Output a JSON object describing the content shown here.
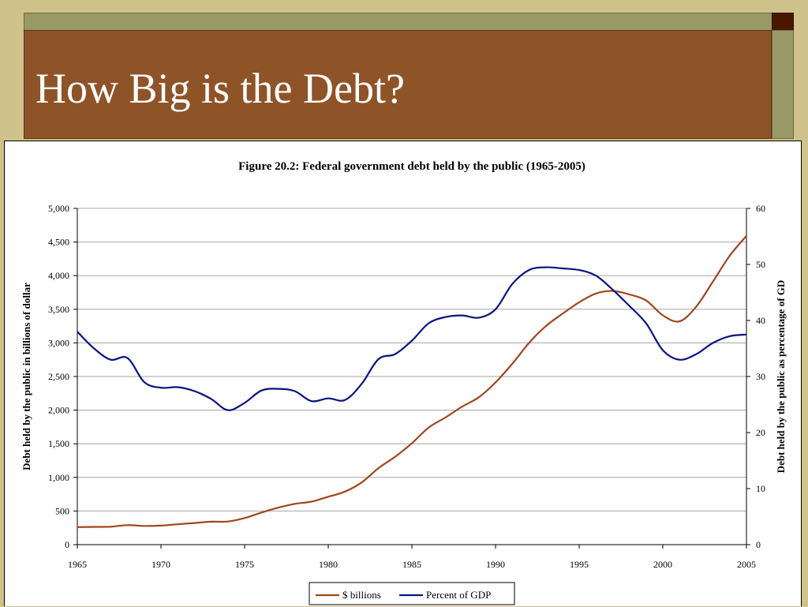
{
  "slide": {
    "title": "How Big is the Debt?"
  },
  "colors": {
    "background": "#cfc28a",
    "title_band": "#8f5328",
    "olive_bar": "#999966",
    "dark_square": "#4a1800"
  },
  "chart_data": {
    "type": "line",
    "title": "Figure 20.2: Federal government debt held by the public (1965-2005)",
    "xlabel": "",
    "ylabel": "Debt held by the public in billions of dollar",
    "y2label": "Debt held by the public as percentage of GD",
    "xlim": [
      1965,
      2005
    ],
    "ylim": [
      0,
      5000
    ],
    "y2lim": [
      0,
      60
    ],
    "x_ticks": [
      1965,
      1970,
      1975,
      1980,
      1985,
      1990,
      1995,
      2000,
      2005
    ],
    "y_ticks": [
      "0",
      "500",
      "1,000",
      "1,500",
      "2,000",
      "2,500",
      "3,000",
      "3,500",
      "4,000",
      "4,500",
      "5,000"
    ],
    "y2_ticks": [
      "0",
      "10",
      "20",
      "30",
      "40",
      "50",
      "60"
    ],
    "grid": "horizontal",
    "legend_position": "bottom",
    "series": [
      {
        "name": "$ billions",
        "axis": "left",
        "color": "#a0461e",
        "x": [
          1965,
          1966,
          1967,
          1968,
          1969,
          1970,
          1971,
          1972,
          1973,
          1974,
          1975,
          1976,
          1977,
          1978,
          1979,
          1980,
          1981,
          1982,
          1983,
          1984,
          1985,
          1986,
          1987,
          1988,
          1989,
          1990,
          1991,
          1992,
          1993,
          1994,
          1995,
          1996,
          1997,
          1998,
          1999,
          2000,
          2001,
          2002,
          2003,
          2004,
          2005
        ],
        "values": [
          261,
          264,
          267,
          290,
          278,
          283,
          303,
          322,
          341,
          344,
          395,
          477,
          549,
          607,
          640,
          712,
          789,
          925,
          1137,
          1307,
          1507,
          1741,
          1890,
          2052,
          2191,
          2412,
          2689,
          2999,
          3248,
          3433,
          3604,
          3734,
          3772,
          3721,
          3632,
          3410,
          3320,
          3540,
          3913,
          4296,
          4592
        ]
      },
      {
        "name": "Percent of GDP",
        "axis": "right",
        "color": "#0a1480",
        "x": [
          1965,
          1966,
          1967,
          1968,
          1969,
          1970,
          1971,
          1972,
          1973,
          1974,
          1975,
          1976,
          1977,
          1978,
          1979,
          1980,
          1981,
          1982,
          1983,
          1984,
          1985,
          1986,
          1987,
          1988,
          1989,
          1990,
          1991,
          1992,
          1993,
          1994,
          1995,
          1996,
          1997,
          1998,
          1999,
          2000,
          2001,
          2002,
          2003,
          2004,
          2005
        ],
        "values": [
          38.0,
          35.0,
          33.0,
          33.3,
          29.0,
          28.0,
          28.1,
          27.4,
          26.0,
          24.0,
          25.3,
          27.5,
          27.8,
          27.4,
          25.6,
          26.1,
          25.8,
          28.7,
          33.1,
          34.0,
          36.4,
          39.5,
          40.6,
          40.9,
          40.5,
          42.0,
          46.5,
          49.0,
          49.5,
          49.3,
          49.0,
          48.0,
          45.5,
          42.6,
          39.5,
          34.7,
          33.0,
          34.0,
          36.0,
          37.2,
          37.5
        ]
      }
    ]
  }
}
